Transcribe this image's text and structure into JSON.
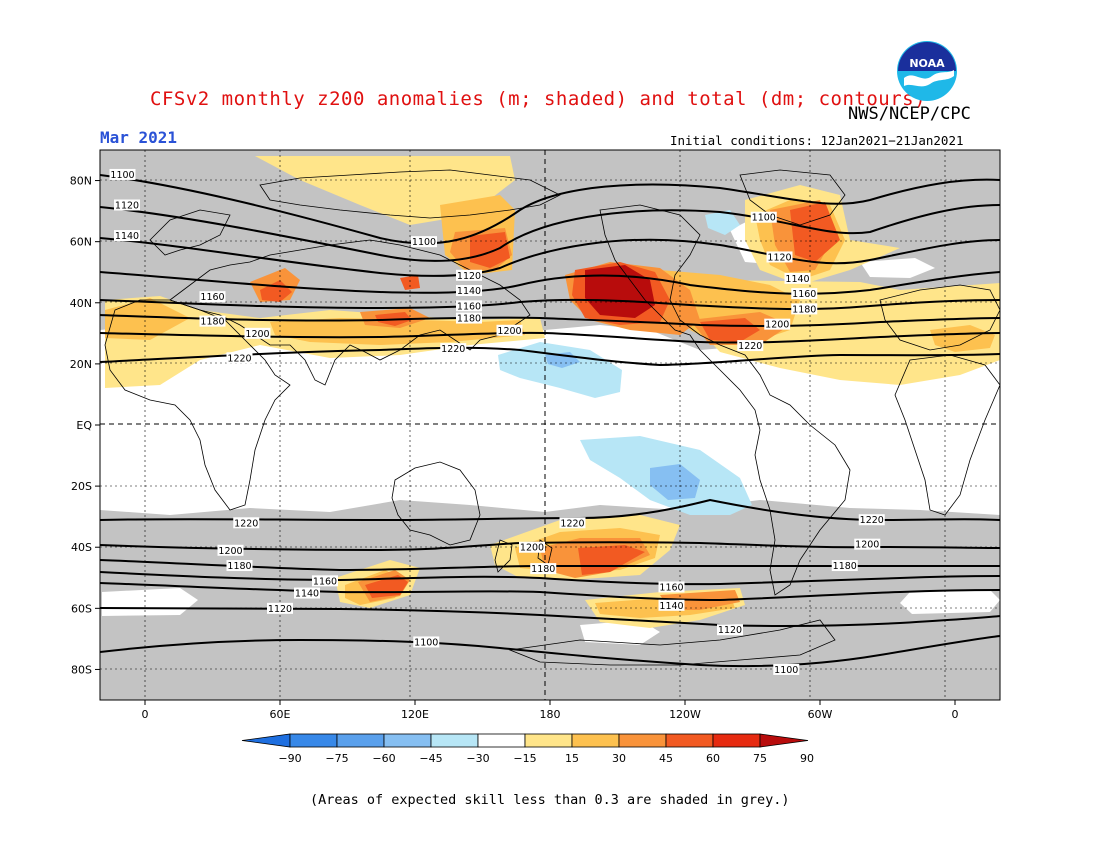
{
  "header": {
    "title": "CFSv2 monthly z200 anomalies (m; shaded) and total (dm; contours)",
    "agency": "NWS/NCEP/CPC",
    "month": "Mar 2021",
    "initial_conditions": "Initial conditions: 12Jan2021−21Jan2021",
    "logo_text": "NOAA"
  },
  "footnote": "(Areas of expected skill less than 0.3 are shaded in grey.)",
  "map": {
    "projection": "equirectangular",
    "lon_range": [
      -20,
      380
    ],
    "lat_range": [
      -90,
      90
    ],
    "lat_labels": [
      "80N",
      "60N",
      "40N",
      "20N",
      "EQ",
      "20S",
      "40S",
      "60S",
      "80S"
    ],
    "lon_labels": [
      "0",
      "60E",
      "120E",
      "180",
      "120W",
      "60W",
      "0"
    ],
    "colors": {
      "skill_grey": "#c3c3c3",
      "contour": "#000000",
      "coast": "#000000"
    },
    "contour_labels": [
      {
        "text": "1100",
        "lon": -10,
        "lat": 82
      },
      {
        "text": "1120",
        "lon": -8,
        "lat": 72
      },
      {
        "text": "1140",
        "lon": -8,
        "lat": 62
      },
      {
        "text": "1160",
        "lon": 30,
        "lat": 42
      },
      {
        "text": "1180",
        "lon": 30,
        "lat": 34
      },
      {
        "text": "1200",
        "lon": 50,
        "lat": 30
      },
      {
        "text": "1220",
        "lon": 42,
        "lat": 22
      },
      {
        "text": "1100",
        "lon": 124,
        "lat": 60
      },
      {
        "text": "1120",
        "lon": 144,
        "lat": 49
      },
      {
        "text": "1140",
        "lon": 144,
        "lat": 44
      },
      {
        "text": "1160",
        "lon": 144,
        "lat": 39
      },
      {
        "text": "1180",
        "lon": 144,
        "lat": 35
      },
      {
        "text": "1200",
        "lon": 162,
        "lat": 31
      },
      {
        "text": "1220",
        "lon": 137,
        "lat": 25
      },
      {
        "text": "1100",
        "lon": 275,
        "lat": 68
      },
      {
        "text": "1120",
        "lon": 282,
        "lat": 55
      },
      {
        "text": "1140",
        "lon": 290,
        "lat": 48
      },
      {
        "text": "1160",
        "lon": 293,
        "lat": 43
      },
      {
        "text": "1180",
        "lon": 293,
        "lat": 38
      },
      {
        "text": "1200",
        "lon": 281,
        "lat": 33
      },
      {
        "text": "1220",
        "lon": 269,
        "lat": 26
      },
      {
        "text": "1220",
        "lon": 45,
        "lat": -32
      },
      {
        "text": "1200",
        "lon": 38,
        "lat": -41
      },
      {
        "text": "1180",
        "lon": 42,
        "lat": -46
      },
      {
        "text": "1160",
        "lon": 80,
        "lat": -51
      },
      {
        "text": "1140",
        "lon": 72,
        "lat": -55
      },
      {
        "text": "1120",
        "lon": 60,
        "lat": -60
      },
      {
        "text": "1100",
        "lon": 125,
        "lat": -71
      },
      {
        "text": "1220",
        "lon": 190,
        "lat": -32
      },
      {
        "text": "1200",
        "lon": 172,
        "lat": -40
      },
      {
        "text": "1180",
        "lon": 177,
        "lat": -47
      },
      {
        "text": "1160",
        "lon": 234,
        "lat": -53
      },
      {
        "text": "1140",
        "lon": 234,
        "lat": -59
      },
      {
        "text": "1120",
        "lon": 260,
        "lat": -67
      },
      {
        "text": "1100",
        "lon": 285,
        "lat": -80
      },
      {
        "text": "1220",
        "lon": 323,
        "lat": -31
      },
      {
        "text": "1200",
        "lon": 321,
        "lat": -39
      },
      {
        "text": "1180",
        "lon": 311,
        "lat": -46
      }
    ]
  },
  "colorbar": {
    "tick_labels": [
      "−90",
      "−75",
      "−60",
      "−45",
      "−30",
      "−15",
      "15",
      "30",
      "45",
      "60",
      "75",
      "90"
    ],
    "colors": [
      "#1e6fe0",
      "#3788e8",
      "#5aa0ec",
      "#86bff2",
      "#b7e6f6",
      "#ffffff",
      "#ffe58a",
      "#fdc14f",
      "#f9933a",
      "#f25a22",
      "#e62a10",
      "#b80c0c"
    ]
  }
}
